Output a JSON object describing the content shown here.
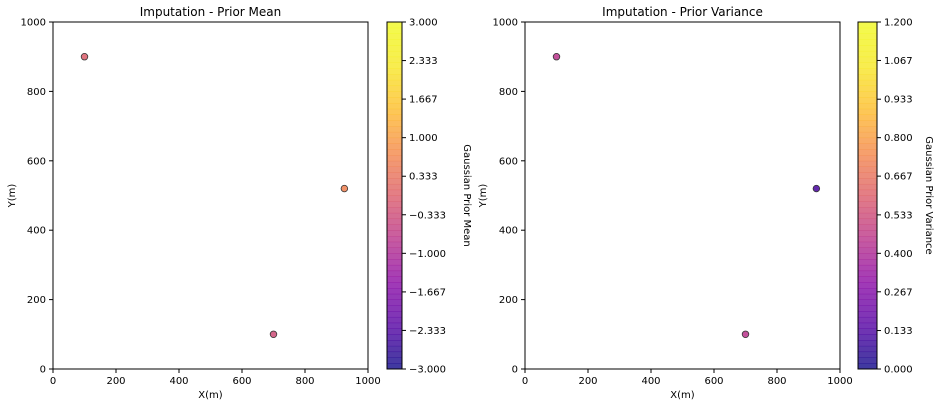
{
  "chart_data": [
    {
      "type": "scatter",
      "title": "Imputation - Prior Mean",
      "xlabel": "X(m)",
      "ylabel": "Y(m)",
      "xlim": [
        0,
        1000
      ],
      "ylim": [
        0,
        1000
      ],
      "xticks": [
        0,
        200,
        400,
        600,
        800,
        1000
      ],
      "yticks": [
        0,
        200,
        400,
        600,
        800,
        1000
      ],
      "xtick_labels": [
        "0",
        "200",
        "400",
        "600",
        "800",
        "1000"
      ],
      "ytick_labels": [
        "0",
        "200",
        "400",
        "600",
        "800",
        "1000"
      ],
      "points": [
        {
          "x": 100,
          "y": 900,
          "value": 0.0
        },
        {
          "x": 700,
          "y": 100,
          "value": -0.3
        },
        {
          "x": 925,
          "y": 520,
          "value": 0.6
        }
      ],
      "colorbar": {
        "label": "Gaussian Prior Mean",
        "colormap": "plasma",
        "min": -3.0,
        "max": 3.0,
        "ticks": [
          -3.0,
          -2.333,
          -1.667,
          -1.0,
          -0.333,
          0.333,
          1.0,
          1.667,
          2.333,
          3.0
        ],
        "tick_labels": [
          "−3.000",
          "−2.333",
          "−1.667",
          "−1.000",
          "−0.333",
          "0.333",
          "1.000",
          "1.667",
          "2.333",
          "3.000"
        ]
      },
      "grid": false
    },
    {
      "type": "scatter",
      "title": "Imputation - Prior Variance",
      "xlabel": "X(m)",
      "ylabel": "Y(m)",
      "xlim": [
        0,
        1000
      ],
      "ylim": [
        0,
        1000
      ],
      "xticks": [
        0,
        200,
        400,
        600,
        800,
        1000
      ],
      "yticks": [
        0,
        200,
        400,
        600,
        800,
        1000
      ],
      "xtick_labels": [
        "0",
        "200",
        "400",
        "600",
        "800",
        "1000"
      ],
      "ytick_labels": [
        "0",
        "200",
        "400",
        "600",
        "800",
        "1000"
      ],
      "points": [
        {
          "x": 100,
          "y": 900,
          "value": 0.45
        },
        {
          "x": 700,
          "y": 100,
          "value": 0.45
        },
        {
          "x": 925,
          "y": 520,
          "value": 0.12
        }
      ],
      "colorbar": {
        "label": "Gaussian Prior Variance",
        "colormap": "plasma",
        "min": 0.0,
        "max": 1.2,
        "ticks": [
          0.0,
          0.133,
          0.267,
          0.4,
          0.533,
          0.667,
          0.8,
          0.933,
          1.067,
          1.2
        ],
        "tick_labels": [
          "0.000",
          "0.133",
          "0.267",
          "0.400",
          "0.533",
          "0.667",
          "0.800",
          "0.933",
          "1.067",
          "1.200"
        ]
      },
      "grid": false
    }
  ]
}
